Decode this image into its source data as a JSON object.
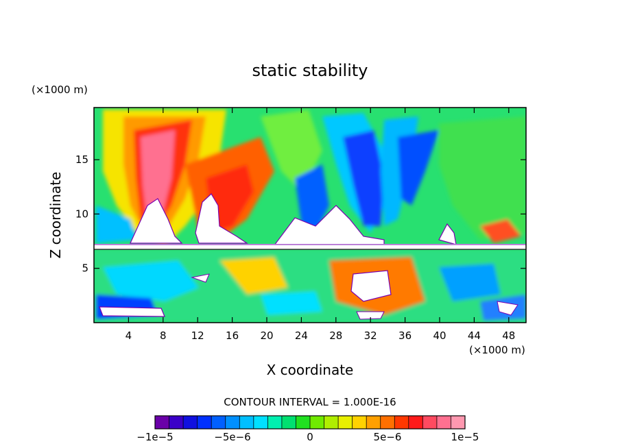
{
  "chart_data": {
    "type": "heatmap",
    "title": "static stability",
    "xlabel": "X coordinate",
    "ylabel": "Z coordinate",
    "x_unit": "(×1000 m)",
    "y_unit": "(×1000 m)",
    "xlim": [
      0,
      50
    ],
    "ylim": [
      0,
      19.8
    ],
    "x_ticks": [
      4,
      8,
      12,
      16,
      20,
      24,
      28,
      32,
      36,
      40,
      44,
      48
    ],
    "y_ticks": [
      5,
      10,
      15
    ],
    "contour_interval_text": "CONTOUR INTERVAL = 1.000E-16",
    "colorbar": {
      "min": -1e-05,
      "max": 1e-05,
      "ticks": [
        -1e-05,
        -5e-06,
        0,
        5e-06,
        1e-05
      ],
      "tick_labels": [
        "−1e−5",
        "−5e−6",
        "0",
        "5e−6",
        "1e−5"
      ],
      "colors": [
        "#6a00a8",
        "#3b00c8",
        "#1010e0",
        "#0030ff",
        "#0060ff",
        "#0090ff",
        "#00bfff",
        "#00e0ff",
        "#00f0b0",
        "#00e070",
        "#20e020",
        "#70ea00",
        "#b0ee00",
        "#e8f000",
        "#ffd200",
        "#ffa000",
        "#ff7000",
        "#ff3800",
        "#ff1a1a",
        "#ff4a60",
        "#ff7090",
        "#ff98b0"
      ]
    }
  }
}
